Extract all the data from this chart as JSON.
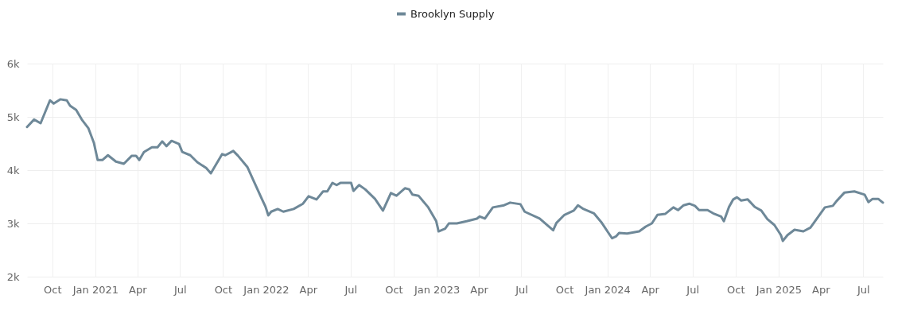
{
  "chart_data": {
    "type": "line",
    "x": [
      "2020-08-08",
      "2020-08-23",
      "2020-09-06",
      "2020-09-26",
      "2020-10-04",
      "2020-10-18",
      "2020-11-01",
      "2020-11-08",
      "2020-11-21",
      "2020-12-03",
      "2020-12-17",
      "2020-12-29",
      "2021-01-06",
      "2021-01-16",
      "2021-01-28",
      "2021-02-14",
      "2021-03-03",
      "2021-03-20",
      "2021-03-29",
      "2021-04-05",
      "2021-04-15",
      "2021-05-02",
      "2021-05-14",
      "2021-05-24",
      "2021-06-02",
      "2021-06-13",
      "2021-06-29",
      "2021-07-06",
      "2021-07-23",
      "2021-08-07",
      "2021-08-26",
      "2021-09-05",
      "2021-09-29",
      "2021-10-06",
      "2021-10-23",
      "2021-11-02",
      "2021-11-22",
      "2021-12-06",
      "2021-12-23",
      "2021-12-31",
      "2022-01-06",
      "2022-01-12",
      "2022-01-26",
      "2022-02-07",
      "2022-03-01",
      "2022-03-21",
      "2022-04-02",
      "2022-04-19",
      "2022-05-03",
      "2022-05-12",
      "2022-05-23",
      "2022-06-01",
      "2022-06-09",
      "2022-07-02",
      "2022-07-07",
      "2022-07-19",
      "2022-08-01",
      "2022-08-22",
      "2022-09-08",
      "2022-09-25",
      "2022-10-07",
      "2022-10-25",
      "2022-11-03",
      "2022-11-10",
      "2022-11-23",
      "2022-12-14",
      "2022-12-31",
      "2023-01-05",
      "2023-01-19",
      "2023-01-27",
      "2023-02-13",
      "2023-03-06",
      "2023-03-28",
      "2023-04-03",
      "2023-04-14",
      "2023-05-01",
      "2023-05-25",
      "2023-06-07",
      "2023-06-29",
      "2023-07-08",
      "2023-08-09",
      "2023-09-07",
      "2023-09-14",
      "2023-10-01",
      "2023-10-21",
      "2023-10-30",
      "2023-11-11",
      "2023-12-03",
      "2023-12-20",
      "2024-01-01",
      "2024-01-11",
      "2024-01-20",
      "2024-01-26",
      "2024-02-12",
      "2024-03-09",
      "2024-03-23",
      "2024-04-05",
      "2024-04-17",
      "2024-05-04",
      "2024-05-21",
      "2024-05-31",
      "2024-06-12",
      "2024-06-24",
      "2024-07-06",
      "2024-07-15",
      "2024-08-02",
      "2024-08-14",
      "2024-08-31",
      "2024-09-06",
      "2024-09-17",
      "2024-09-26",
      "2024-10-04",
      "2024-10-13",
      "2024-10-27",
      "2024-11-11",
      "2024-11-25",
      "2024-12-08",
      "2024-12-23",
      "2025-01-06",
      "2025-01-10",
      "2025-01-20",
      "2025-02-04",
      "2025-02-23",
      "2025-03-10",
      "2025-04-10",
      "2025-04-27",
      "2025-05-05",
      "2025-05-22",
      "2025-06-12",
      "2025-07-04",
      "2025-07-12",
      "2025-07-21",
      "2025-08-02",
      "2025-08-12"
    ],
    "series": [
      {
        "name": "Brooklyn Supply",
        "color": "#6e8898",
        "values": [
          4810,
          4950,
          4880,
          5310,
          5250,
          5330,
          5310,
          5210,
          5130,
          4950,
          4790,
          4510,
          4190,
          4190,
          4280,
          4160,
          4120,
          4270,
          4270,
          4190,
          4340,
          4430,
          4430,
          4540,
          4450,
          4550,
          4490,
          4340,
          4280,
          4150,
          4040,
          3940,
          4300,
          4280,
          4360,
          4270,
          4060,
          3790,
          3460,
          3310,
          3150,
          3220,
          3270,
          3220,
          3270,
          3370,
          3510,
          3450,
          3600,
          3600,
          3760,
          3720,
          3760,
          3760,
          3610,
          3720,
          3640,
          3460,
          3240,
          3570,
          3520,
          3660,
          3640,
          3540,
          3520,
          3300,
          3040,
          2850,
          2900,
          3000,
          3000,
          3040,
          3090,
          3130,
          3090,
          3300,
          3340,
          3390,
          3360,
          3220,
          3090,
          2870,
          3010,
          3160,
          3240,
          3340,
          3270,
          3190,
          3010,
          2850,
          2720,
          2760,
          2820,
          2810,
          2850,
          2940,
          3000,
          3160,
          3180,
          3300,
          3250,
          3340,
          3370,
          3330,
          3250,
          3250,
          3190,
          3130,
          3040,
          3310,
          3450,
          3490,
          3430,
          3450,
          3310,
          3240,
          3080,
          2970,
          2780,
          2670,
          2780,
          2880,
          2850,
          2920,
          3300,
          3330,
          3420,
          3580,
          3600,
          3540,
          3400,
          3460,
          3460,
          3390
        ]
      }
    ],
    "xlim": [
      "2020-08-08",
      "2025-08-12"
    ],
    "xticks": [
      {
        "value": "2020-10-01",
        "label": "Oct"
      },
      {
        "value": "2021-01-01",
        "label": "Jan 2021"
      },
      {
        "value": "2021-04-01",
        "label": "Apr"
      },
      {
        "value": "2021-07-01",
        "label": "Jul"
      },
      {
        "value": "2021-10-01",
        "label": "Oct"
      },
      {
        "value": "2022-01-01",
        "label": "Jan 2022"
      },
      {
        "value": "2022-04-01",
        "label": "Apr"
      },
      {
        "value": "2022-07-01",
        "label": "Jul"
      },
      {
        "value": "2022-10-01",
        "label": "Oct"
      },
      {
        "value": "2023-01-01",
        "label": "Jan 2023"
      },
      {
        "value": "2023-04-01",
        "label": "Apr"
      },
      {
        "value": "2023-07-01",
        "label": "Jul"
      },
      {
        "value": "2023-10-01",
        "label": "Oct"
      },
      {
        "value": "2024-01-01",
        "label": "Jan 2024"
      },
      {
        "value": "2024-04-01",
        "label": "Apr"
      },
      {
        "value": "2024-07-01",
        "label": "Jul"
      },
      {
        "value": "2024-10-01",
        "label": "Oct"
      },
      {
        "value": "2025-01-01",
        "label": "Jan 2025"
      },
      {
        "value": "2025-04-01",
        "label": "Apr"
      },
      {
        "value": "2025-07-01",
        "label": "Jul"
      }
    ],
    "ylim": [
      2000,
      6000
    ],
    "yticks": [
      {
        "value": 2000,
        "label": "2k"
      },
      {
        "value": 3000,
        "label": "3k"
      },
      {
        "value": 4000,
        "label": "4k"
      },
      {
        "value": 5000,
        "label": "5k"
      },
      {
        "value": 6000,
        "label": "6k"
      }
    ],
    "grid": true,
    "legend": "top",
    "line_style": "solid"
  }
}
